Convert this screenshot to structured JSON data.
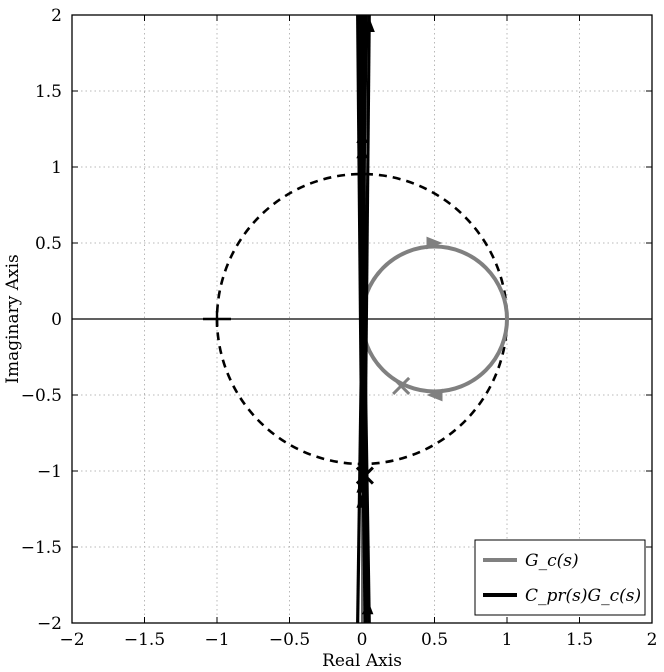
{
  "chart_data": {
    "type": "line",
    "title": "",
    "xlabel": "Real Axis",
    "ylabel": "Imaginary Axis",
    "xlim": [
      -2,
      2
    ],
    "ylim": [
      -2,
      2
    ],
    "xticks": [
      -2,
      -1.5,
      -1,
      -0.5,
      0,
      0.5,
      1,
      1.5,
      2
    ],
    "yticks": [
      -2,
      -1.5,
      -1,
      -0.5,
      0,
      0.5,
      1,
      1.5,
      2
    ],
    "xtick_labels": [
      "−2",
      "−1.5",
      "−1",
      "−0.5",
      "0",
      "0.5",
      "1",
      "1.5",
      "2"
    ],
    "ytick_labels": [
      "−2",
      "−1.5",
      "−1",
      "−0.5",
      "0",
      "0.5",
      "1",
      "1.5",
      "2"
    ],
    "grid": true,
    "legend_position": "bottom-right",
    "unit_circle": {
      "center": [
        0,
        0
      ],
      "radius": 1,
      "style": "dashed",
      "color": "#000000"
    },
    "critical_point": {
      "x": -1,
      "y": 0,
      "marker": "plus"
    },
    "series": [
      {
        "name": "G_c(s)",
        "color": "#808080",
        "shape": "circle",
        "center": [
          0.5,
          0
        ],
        "radius": 0.5,
        "arrows": [
          {
            "x": 0.5,
            "y": 0.5,
            "direction": "right"
          },
          {
            "x": 0.5,
            "y": -0.5,
            "direction": "left"
          }
        ],
        "cross_marker": {
          "x": 0.27,
          "y": -0.44
        }
      },
      {
        "name": "C_pr(s)G_c(s)",
        "color": "#000000",
        "lines": [
          [
            [
              -0.03,
              2
            ],
            [
              0,
              -1.05
            ]
          ],
          [
            [
              -0.01,
              2
            ],
            [
              0.02,
              -2
            ]
          ],
          [
            [
              0.01,
              2
            ],
            [
              0.03,
              -2
            ]
          ],
          [
            [
              0.03,
              2
            ],
            [
              -0.03,
              -2
            ]
          ],
          [
            [
              0.05,
              2
            ],
            [
              0.02,
              -1.0
            ]
          ],
          [
            [
              0.0,
              1.0
            ],
            [
              0.05,
              -2
            ]
          ]
        ],
        "arrows": [
          {
            "x": 0.05,
            "y": 1.93,
            "direction": "up"
          },
          {
            "x": 0.0,
            "y": 1.2,
            "direction": "up"
          },
          {
            "x": 0.0,
            "y": 1.1,
            "direction": "up"
          },
          {
            "x": 0.0,
            "y": -1.1,
            "direction": "up"
          },
          {
            "x": 0.0,
            "y": -1.2,
            "direction": "up"
          },
          {
            "x": 0.04,
            "y": -1.9,
            "direction": "up"
          }
        ],
        "cross_marker": {
          "x": 0.02,
          "y": -1.03
        }
      }
    ]
  }
}
